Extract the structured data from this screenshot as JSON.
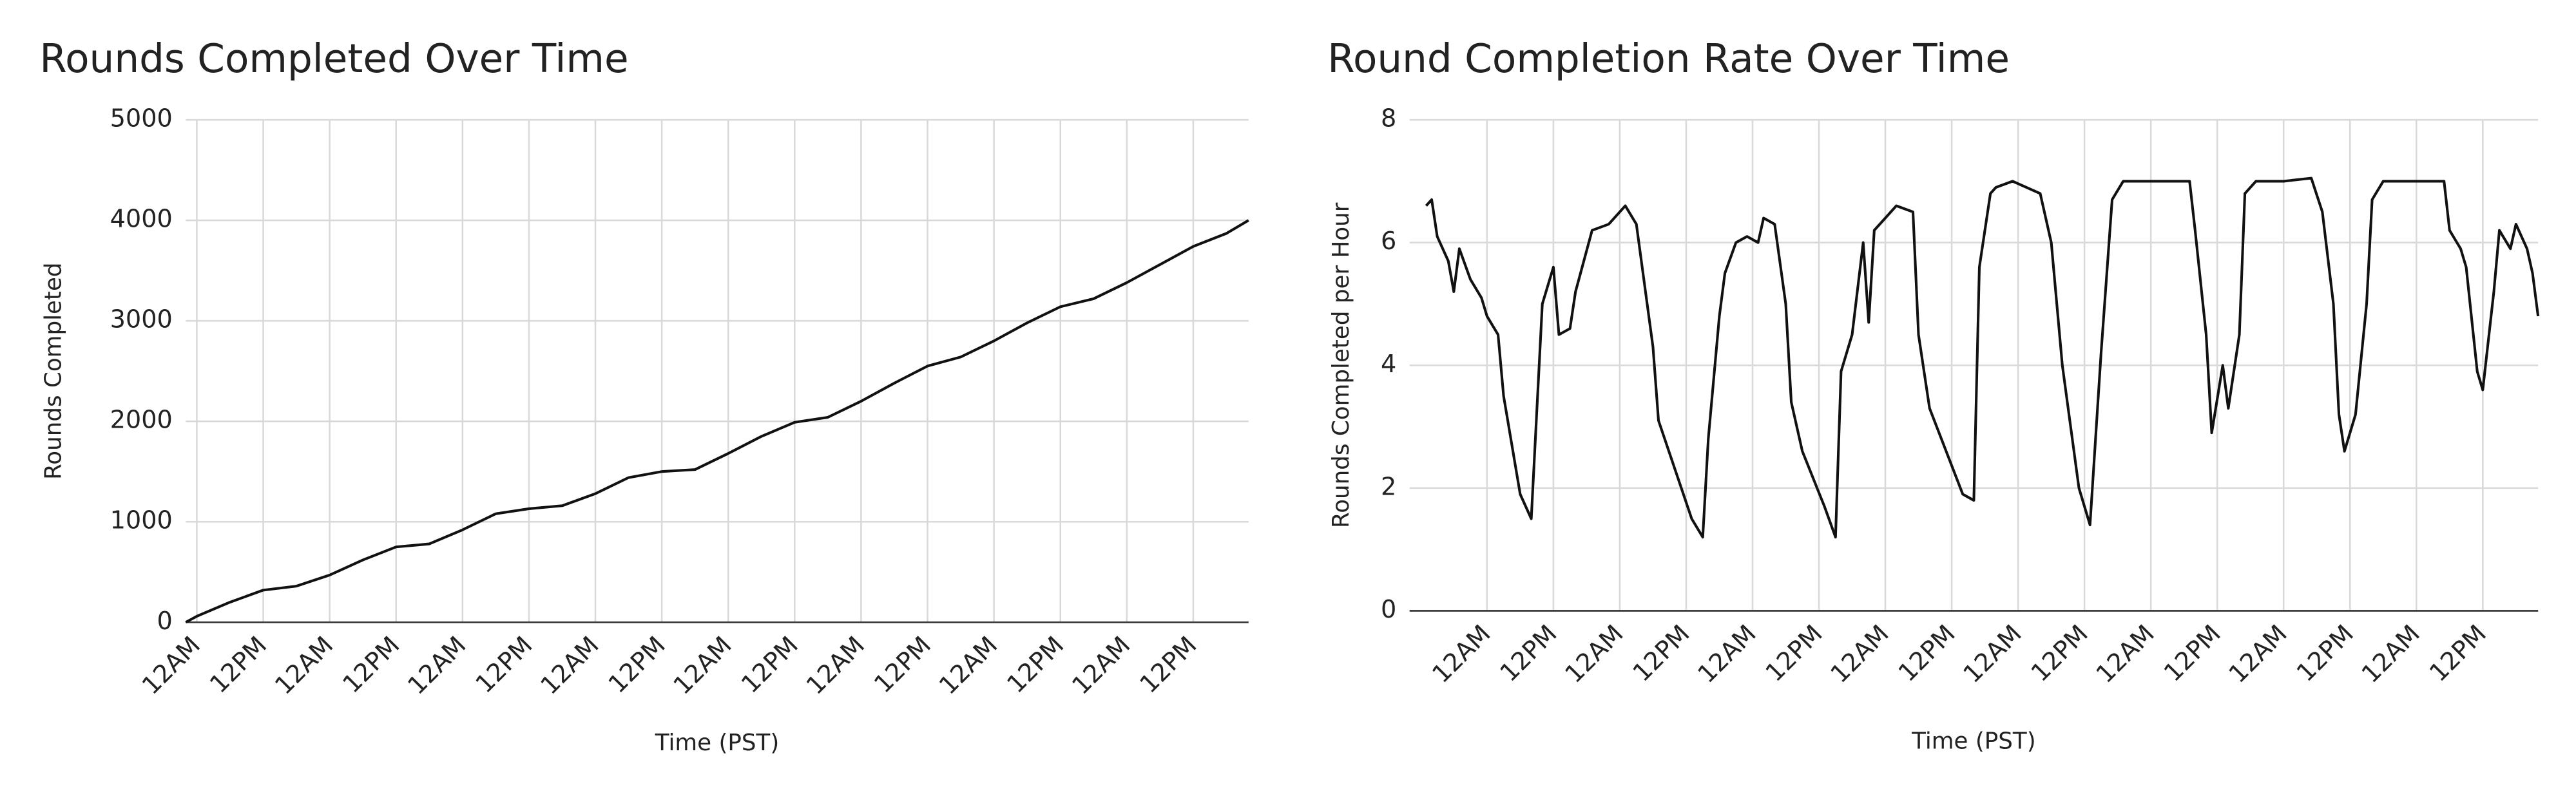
{
  "chart_data": [
    {
      "type": "line",
      "title": "Rounds Completed Over Time",
      "x_label": "Time (PST)",
      "y_label": "Rounds Completed",
      "x": [
        -2,
        0,
        6,
        12,
        18,
        24,
        30,
        36,
        42,
        48,
        54,
        60,
        66,
        72,
        78,
        84,
        90,
        96,
        102,
        108,
        114,
        120,
        126,
        132,
        138,
        144,
        150,
        156,
        162,
        168,
        174,
        180,
        186,
        190
      ],
      "series": [
        {
          "name": "Rounds Completed",
          "color": "#111111",
          "values": [
            0,
            60,
            200,
            320,
            360,
            470,
            620,
            750,
            780,
            920,
            1080,
            1130,
            1160,
            1280,
            1440,
            1500,
            1520,
            1680,
            1850,
            1990,
            2040,
            2200,
            2380,
            2550,
            2640,
            2800,
            2980,
            3140,
            3220,
            3380,
            3560,
            3740,
            3870,
            4000
          ]
        }
      ],
      "xlim": [
        -2,
        190
      ],
      "ylim": [
        0,
        5000
      ],
      "yticks": [
        0,
        1000,
        2000,
        3000,
        4000,
        5000
      ],
      "xticks": [
        {
          "value": 0,
          "label": "12AM"
        },
        {
          "value": 12,
          "label": "12PM"
        },
        {
          "value": 24,
          "label": "12AM"
        },
        {
          "value": 36,
          "label": "12PM"
        },
        {
          "value": 48,
          "label": "12AM"
        },
        {
          "value": 60,
          "label": "12PM"
        },
        {
          "value": 72,
          "label": "12AM"
        },
        {
          "value": 84,
          "label": "12PM"
        },
        {
          "value": 96,
          "label": "12AM"
        },
        {
          "value": 108,
          "label": "12PM"
        },
        {
          "value": 120,
          "label": "12AM"
        },
        {
          "value": 132,
          "label": "12PM"
        },
        {
          "value": 144,
          "label": "12AM"
        },
        {
          "value": 156,
          "label": "12PM"
        },
        {
          "value": 168,
          "label": "12AM"
        },
        {
          "value": 180,
          "label": "12PM"
        }
      ],
      "grid": true
    },
    {
      "type": "line",
      "title": "Round Completion Rate Over Time",
      "x_label": "Time (PST)",
      "y_label": "Rounds Completed per Hour",
      "x": [
        -11,
        -10,
        -9,
        -7,
        -6,
        -5,
        -3,
        -1,
        0,
        2,
        3,
        6,
        8,
        10,
        12,
        13,
        15,
        16,
        19,
        22,
        25,
        27,
        30,
        31,
        37,
        39,
        40,
        42,
        43,
        45,
        47,
        49,
        50,
        52,
        54,
        55,
        57,
        61,
        63,
        64,
        66,
        68,
        69,
        70,
        73,
        74,
        77,
        78,
        80,
        86,
        88,
        89,
        91,
        92,
        95,
        100,
        102,
        104,
        107,
        109,
        111,
        113,
        115,
        121,
        127,
        128,
        130,
        131,
        133,
        134,
        136,
        137,
        139,
        144,
        149,
        151,
        153,
        154,
        155,
        157,
        159,
        160,
        162,
        168,
        173,
        174,
        176,
        177,
        179,
        180,
        182,
        183,
        185,
        186,
        188,
        189,
        190
      ],
      "series": [
        {
          "name": "Rounds Completed per Hour",
          "color": "#111111",
          "values": [
            6.6,
            6.7,
            6.1,
            5.7,
            5.2,
            5.9,
            5.4,
            5.1,
            4.8,
            4.5,
            3.5,
            1.9,
            1.5,
            5.0,
            5.6,
            4.5,
            4.6,
            5.2,
            6.2,
            6.3,
            6.6,
            6.3,
            4.3,
            3.1,
            1.5,
            1.2,
            2.8,
            4.8,
            5.5,
            6.0,
            6.1,
            6.0,
            6.4,
            6.3,
            5.0,
            3.4,
            2.6,
            1.7,
            1.2,
            3.9,
            4.5,
            6.0,
            4.7,
            6.2,
            6.5,
            6.6,
            6.5,
            4.5,
            3.3,
            1.9,
            1.8,
            5.6,
            6.8,
            6.9,
            7.0,
            6.8,
            6.0,
            4.0,
            2.0,
            1.4,
            4.2,
            6.7,
            7.0,
            7.0,
            7.0,
            6.2,
            4.5,
            2.9,
            4.0,
            3.3,
            4.5,
            6.8,
            7.0,
            7.0,
            7.05,
            6.5,
            5.0,
            3.2,
            2.6,
            3.2,
            5.0,
            6.7,
            7.0,
            7.0,
            7.0,
            6.2,
            5.9,
            5.6,
            3.9,
            3.6,
            5.2,
            6.2,
            5.9,
            6.3,
            5.9,
            5.5,
            4.8
          ]
        }
      ],
      "xlim": [
        -14,
        190
      ],
      "ylim": [
        0,
        8
      ],
      "yticks": [
        0,
        2,
        4,
        6,
        8
      ],
      "xticks": [
        {
          "value": 0,
          "label": "12AM"
        },
        {
          "value": 12,
          "label": "12PM"
        },
        {
          "value": 24,
          "label": "12AM"
        },
        {
          "value": 36,
          "label": "12PM"
        },
        {
          "value": 48,
          "label": "12AM"
        },
        {
          "value": 60,
          "label": "12PM"
        },
        {
          "value": 72,
          "label": "12AM"
        },
        {
          "value": 84,
          "label": "12PM"
        },
        {
          "value": 96,
          "label": "12AM"
        },
        {
          "value": 108,
          "label": "12PM"
        },
        {
          "value": 120,
          "label": "12AM"
        },
        {
          "value": 132,
          "label": "12PM"
        },
        {
          "value": 144,
          "label": "12AM"
        },
        {
          "value": 156,
          "label": "12PM"
        },
        {
          "value": 168,
          "label": "12AM"
        },
        {
          "value": 180,
          "label": "12PM"
        }
      ],
      "grid": true
    }
  ]
}
